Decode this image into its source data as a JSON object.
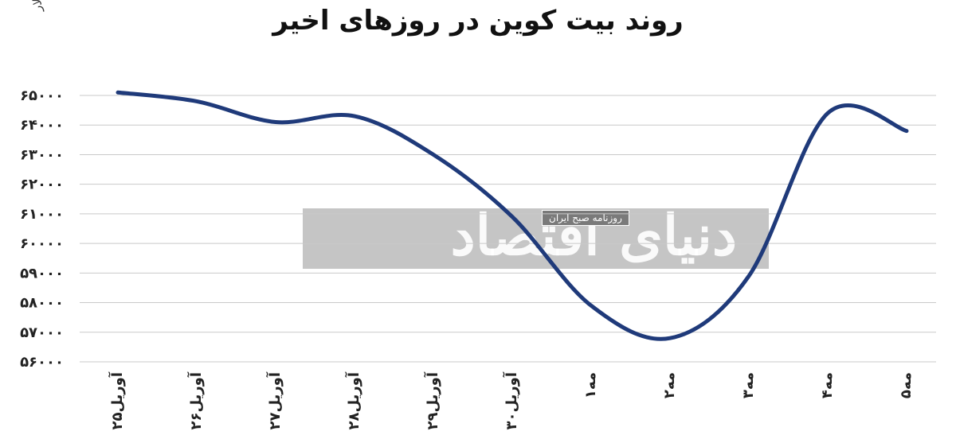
{
  "chart_data": {
    "type": "line",
    "title": "روند بیت کوین در روزهای اخیر",
    "ylabel": "دلار",
    "xlabel": "",
    "categories": [
      "۲۵آوریل",
      "۲۶آوریل",
      "۲۷آوریل",
      "۲۸آوریل",
      "۲۹آوریل",
      "۳۰آوریل",
      "۱مه",
      "۲مه",
      "۳مه",
      "۴مه",
      "۵مه"
    ],
    "y_tick_labels": [
      "۶۵۰۰۰",
      "۶۴۰۰۰",
      "۶۳۰۰۰",
      "۶۲۰۰۰",
      "۶۱۰۰۰",
      "۶۰۰۰۰",
      "۵۹۰۰۰",
      "۵۸۰۰۰",
      "۵۷۰۰۰",
      "۵۶۰۰۰"
    ],
    "y_ticks": [
      65000,
      64000,
      63000,
      62000,
      61000,
      60000,
      59000,
      58000,
      57000,
      56000
    ],
    "ylim": [
      56000,
      65000
    ],
    "grid": true,
    "series": [
      {
        "values": [
          65100,
          64800,
          64100,
          64300,
          63000,
          60900,
          57900,
          56800,
          58900,
          64400,
          63800
        ]
      }
    ],
    "colors": {
      "line": "#1f3a7a",
      "grid": "#c9c9c9"
    }
  },
  "watermark": {
    "main": "دنیای اقتصاد",
    "sub": "روزنامه صبح ایران"
  }
}
